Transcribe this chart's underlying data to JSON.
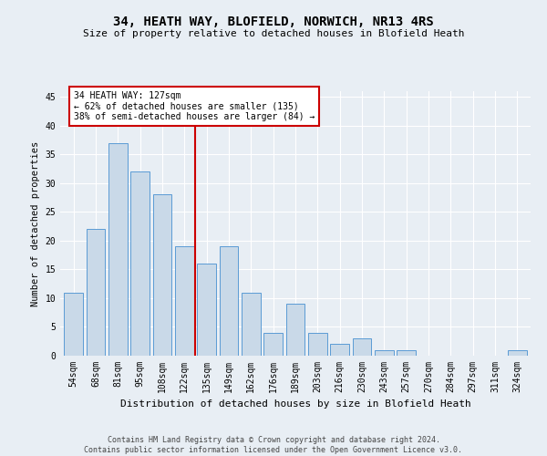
{
  "title": "34, HEATH WAY, BLOFIELD, NORWICH, NR13 4RS",
  "subtitle": "Size of property relative to detached houses in Blofield Heath",
  "xlabel": "Distribution of detached houses by size in Blofield Heath",
  "ylabel": "Number of detached properties",
  "footer1": "Contains HM Land Registry data © Crown copyright and database right 2024.",
  "footer2": "Contains public sector information licensed under the Open Government Licence v3.0.",
  "categories": [
    "54sqm",
    "68sqm",
    "81sqm",
    "95sqm",
    "108sqm",
    "122sqm",
    "135sqm",
    "149sqm",
    "162sqm",
    "176sqm",
    "189sqm",
    "203sqm",
    "216sqm",
    "230sqm",
    "243sqm",
    "257sqm",
    "270sqm",
    "284sqm",
    "297sqm",
    "311sqm",
    "324sqm"
  ],
  "values": [
    11,
    22,
    37,
    32,
    28,
    19,
    16,
    19,
    11,
    4,
    9,
    4,
    2,
    3,
    1,
    1,
    0,
    0,
    0,
    0,
    1
  ],
  "bar_color": "#c9d9e8",
  "bar_edge_color": "#5b9bd5",
  "background_color": "#e8eef4",
  "grid_color": "#ffffff",
  "annotation_box_color": "#ffffff",
  "annotation_box_edge": "#cc0000",
  "vline_color": "#cc0000",
  "vline_x": 5.5,
  "annotation_text1": "34 HEATH WAY: 127sqm",
  "annotation_text2": "← 62% of detached houses are smaller (135)",
  "annotation_text3": "38% of semi-detached houses are larger (84) →",
  "ylim": [
    0,
    46
  ],
  "yticks": [
    0,
    5,
    10,
    15,
    20,
    25,
    30,
    35,
    40,
    45
  ],
  "title_fontsize": 10,
  "subtitle_fontsize": 8,
  "xlabel_fontsize": 8,
  "ylabel_fontsize": 7.5,
  "tick_fontsize": 7,
  "annotation_fontsize": 7,
  "footer_fontsize": 6
}
